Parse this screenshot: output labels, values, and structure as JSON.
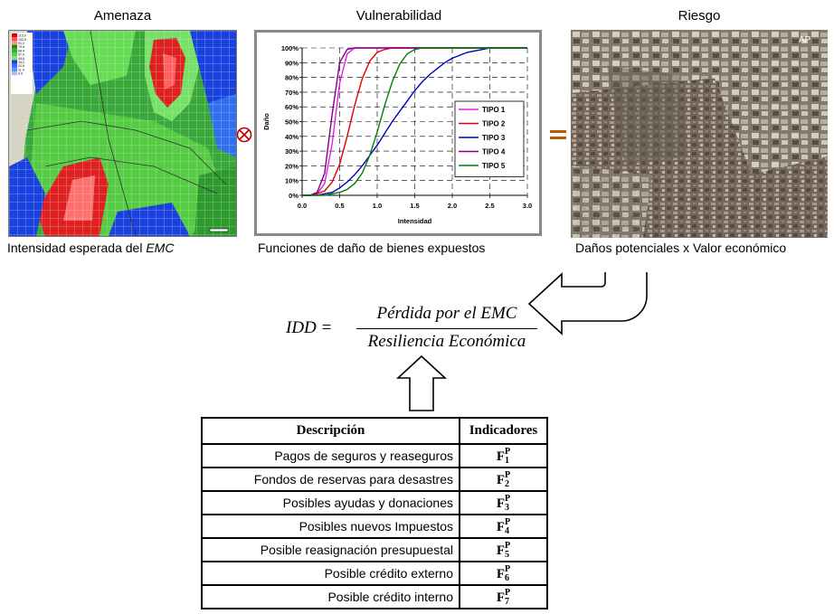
{
  "panels": {
    "threat": {
      "title": "Amenaza",
      "caption_prefix": "Intensidad esperada del ",
      "caption_em": "EMC"
    },
    "vulnerability": {
      "title": "Vulnerabilidad",
      "caption": "Funciones de daño de bienes expuestos"
    },
    "risk": {
      "title": "Riesgo",
      "caption": "Daños potenciales x Valor económico",
      "photo_mark": "AP"
    }
  },
  "operators": {
    "times": "⊗",
    "equals": "="
  },
  "formula": {
    "lhs": "IDD =",
    "numerator": "Pérdida por el EMC",
    "denominator": "Resiliencia Económica"
  },
  "table": {
    "headers": [
      "Descripción",
      "Indicadores"
    ],
    "rows": [
      {
        "description": "Pagos de seguros y reaseguros",
        "indicator": "F",
        "sub": "1",
        "sup": "P"
      },
      {
        "description": "Fondos de reservas para desastres",
        "indicator": "F",
        "sub": "2",
        "sup": "P"
      },
      {
        "description": "Posibles ayudas y donaciones",
        "indicator": "F",
        "sub": "3",
        "sup": "P"
      },
      {
        "description": "Posibles nuevos Impuestos",
        "indicator": "F",
        "sub": "4",
        "sup": "P"
      },
      {
        "description": "Posible reasignación presupuestal",
        "indicator": "F",
        "sub": "5",
        "sup": "P"
      },
      {
        "description": "Posible crédito externo",
        "indicator": "F",
        "sub": "6",
        "sup": "P"
      },
      {
        "description": "Posible crédito interno",
        "indicator": "F",
        "sub": "7",
        "sup": "P"
      }
    ]
  },
  "chart_data": {
    "type": "line",
    "title": "",
    "xlabel": "Intensidad",
    "ylabel": "Daño",
    "xlim": [
      0.0,
      3.0
    ],
    "ylim": [
      0,
      100
    ],
    "x_ticks": [
      "0.0",
      "0.5",
      "1.0",
      "1.5",
      "2.0",
      "2.5",
      "3.0"
    ],
    "y_ticks": [
      "0%",
      "10%",
      "20%",
      "30%",
      "40%",
      "50%",
      "60%",
      "70%",
      "80%",
      "90%",
      "100%"
    ],
    "grid": true,
    "legend": "right",
    "x": [
      0.0,
      0.1,
      0.2,
      0.3,
      0.4,
      0.5,
      0.6,
      0.7,
      0.8,
      0.9,
      1.0,
      1.1,
      1.2,
      1.3,
      1.4,
      1.5,
      1.6,
      1.7,
      1.8,
      1.9,
      2.0,
      2.1,
      2.2,
      2.3,
      2.4,
      2.5,
      2.6,
      2.7,
      2.8,
      2.9,
      3.0
    ],
    "series": [
      {
        "name": "TIPO 1",
        "color": "#e020e0",
        "values": [
          0,
          0,
          1,
          8,
          35,
          76,
          96,
          100,
          100,
          100,
          100,
          100,
          100,
          100,
          100,
          100,
          100,
          100,
          100,
          100,
          100,
          100,
          100,
          100,
          100,
          100,
          100,
          100,
          100,
          100,
          100
        ]
      },
      {
        "name": "TIPO 2",
        "color": "#e00000",
        "values": [
          0,
          0,
          1,
          3,
          9,
          21,
          40,
          61,
          79,
          91,
          97,
          99,
          100,
          100,
          100,
          100,
          100,
          100,
          100,
          100,
          100,
          100,
          100,
          100,
          100,
          100,
          100,
          100,
          100,
          100,
          100
        ]
      },
      {
        "name": "TIPO 3",
        "color": "#0000c0",
        "values": [
          0,
          0,
          0,
          1,
          2,
          5,
          9,
          14,
          20,
          27,
          34,
          42,
          50,
          57,
          64,
          71,
          77,
          82,
          86,
          90,
          93,
          95,
          97,
          98,
          99,
          100,
          100,
          100,
          100,
          100,
          100
        ]
      },
      {
        "name": "TIPO 4",
        "color": "#800080",
        "values": [
          0,
          0,
          2,
          15,
          55,
          90,
          99,
          100,
          100,
          100,
          100,
          100,
          100,
          100,
          100,
          100,
          100,
          100,
          100,
          100,
          100,
          100,
          100,
          100,
          100,
          100,
          100,
          100,
          100,
          100,
          100
        ]
      },
      {
        "name": "TIPO 5",
        "color": "#008000",
        "values": [
          0,
          0,
          0,
          0,
          1,
          2,
          4,
          8,
          15,
          27,
          43,
          61,
          77,
          89,
          96,
          99,
          100,
          100,
          100,
          100,
          100,
          100,
          100,
          100,
          100,
          100,
          100,
          100,
          100,
          100,
          100
        ]
      }
    ]
  },
  "map_legend_ticks": [
    "113.9",
    "102.5",
    "91.2",
    "79.8",
    "68.4",
    "57.0",
    "45.6",
    "34.2",
    "22.8",
    "11.4",
    "0.0"
  ]
}
